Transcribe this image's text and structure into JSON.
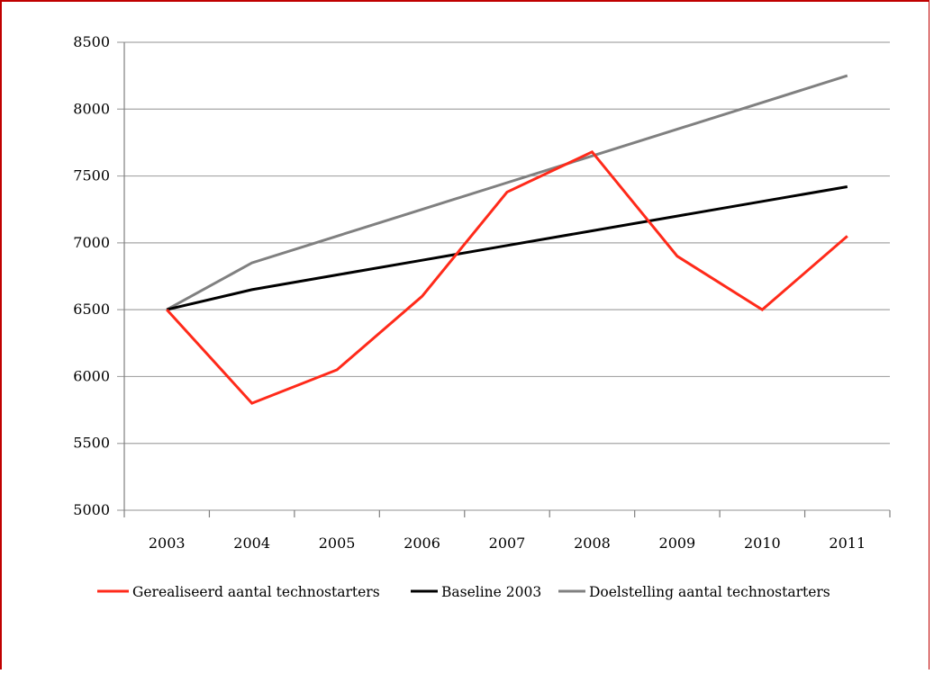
{
  "chart_data": {
    "type": "line",
    "title": "",
    "xlabel": "",
    "ylabel": "",
    "categories": [
      "2003",
      "2004",
      "2005",
      "2006",
      "2007",
      "2008",
      "2009",
      "2010",
      "2011"
    ],
    "ylim": [
      5000,
      8500
    ],
    "yticks": [
      "5000",
      "5500",
      "6000",
      "6500",
      "7000",
      "7500",
      "8000",
      "8500"
    ],
    "grid": true,
    "legend_position": "bottom",
    "series": [
      {
        "name": "Gerealiseerd aantal technostarters",
        "color": "#ff2a1a",
        "values": [
          6500,
          5800,
          6050,
          6600,
          7380,
          7680,
          6900,
          6500,
          7050
        ]
      },
      {
        "name": "Baseline 2003",
        "color": "#000000",
        "values": [
          6500,
          6650,
          6760,
          6870,
          6980,
          7090,
          7200,
          7310,
          7420
        ]
      },
      {
        "name": "Doelstelling aantal technostarters",
        "color": "#808080",
        "values": [
          6500,
          6850,
          7050,
          7250,
          7450,
          7650,
          7850,
          8050,
          8250
        ]
      }
    ]
  }
}
